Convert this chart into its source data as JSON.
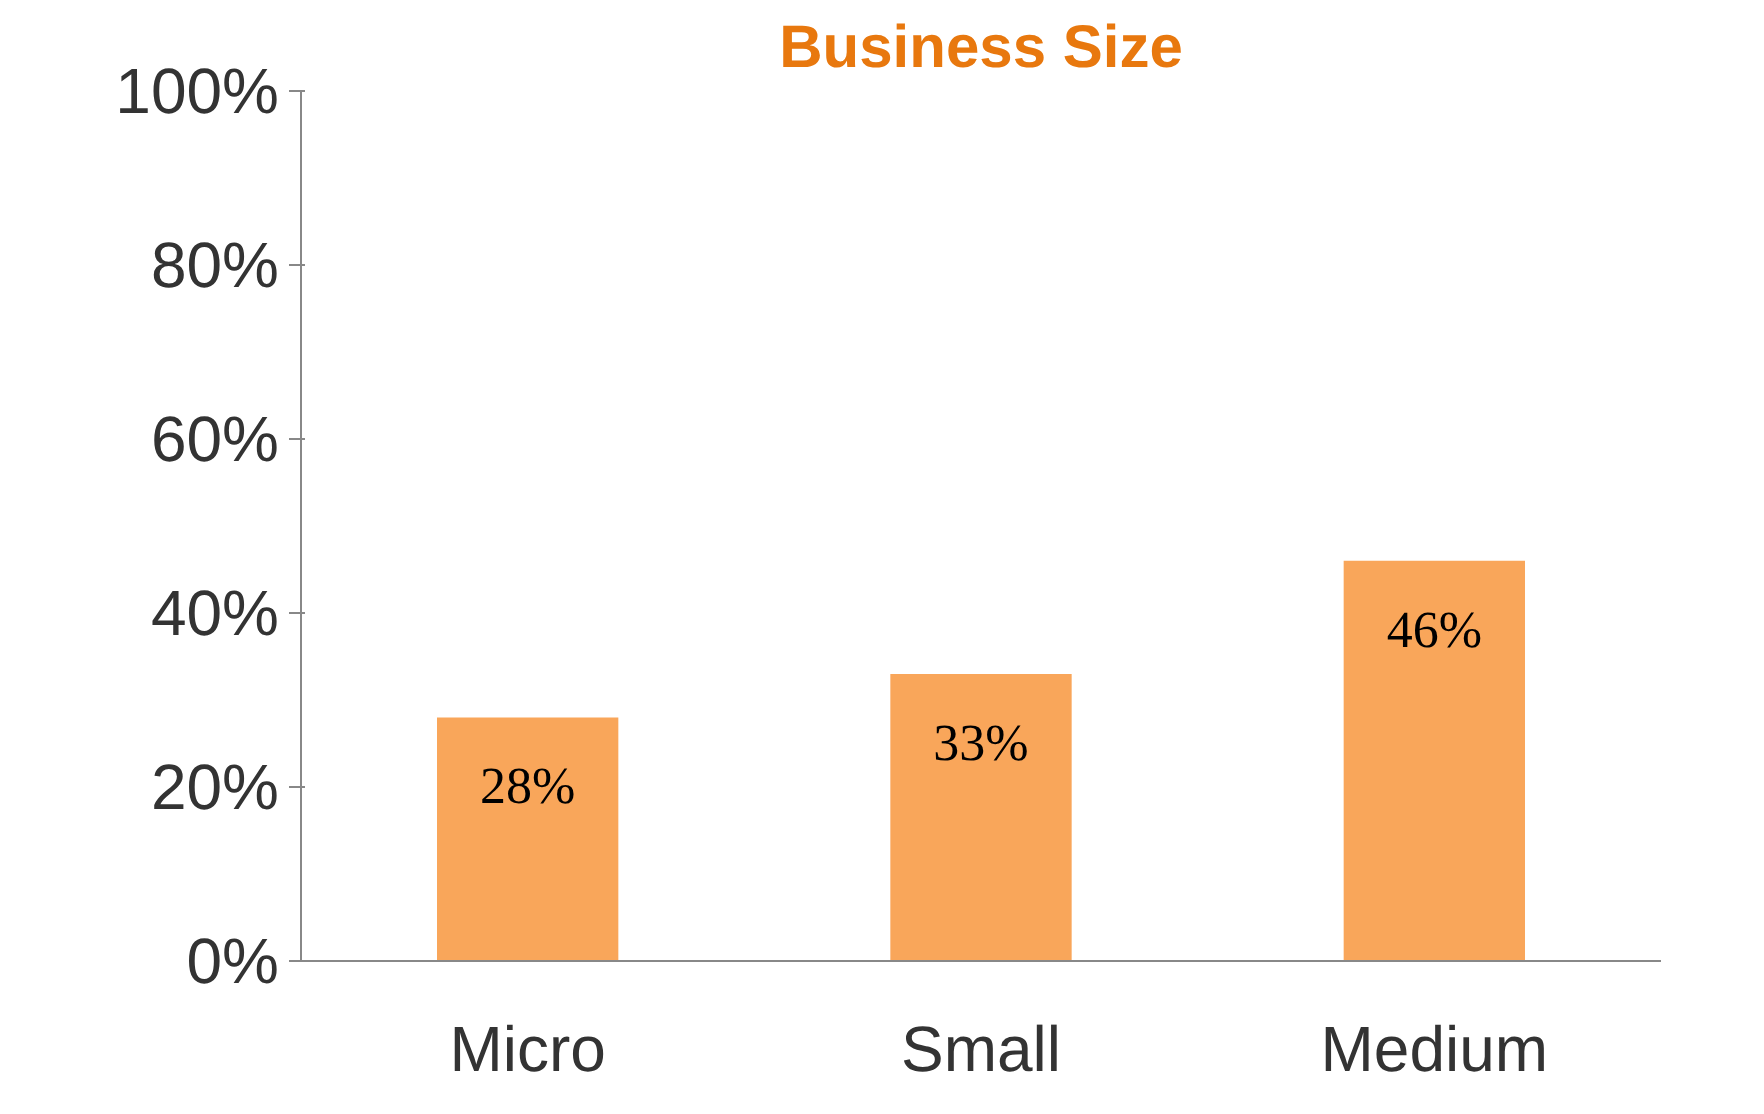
{
  "chart_data": {
    "type": "bar",
    "title": "Business Size",
    "categories": [
      "Micro",
      "Small",
      "Medium"
    ],
    "values": [
      28,
      33,
      46
    ],
    "value_labels": [
      "28%",
      "33%",
      "46%"
    ],
    "color": "#f9a65a",
    "ylim": [
      0,
      100
    ],
    "yticks": [
      {
        "value": 0,
        "label": "0%"
      },
      {
        "value": 20,
        "label": "20%"
      },
      {
        "value": 40,
        "label": "40%"
      },
      {
        "value": 60,
        "label": "60%"
      },
      {
        "value": 80,
        "label": "80%"
      },
      {
        "value": 100,
        "label": "100%"
      }
    ],
    "grid": false
  }
}
